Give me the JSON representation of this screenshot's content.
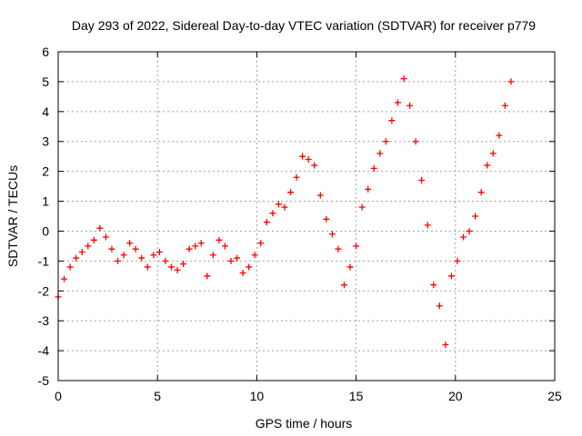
{
  "chart_data": {
    "type": "scatter",
    "title": "Day 293 of 2022, Sidereal Day-to-day VTEC variation (SDTVAR) for receiver p779",
    "xlabel": "GPS time / hours",
    "ylabel": "SDTVAR / TECUs",
    "xlim": [
      0,
      25
    ],
    "ylim": [
      -5,
      6
    ],
    "x_ticks": [
      0,
      5,
      10,
      15,
      20,
      25
    ],
    "y_ticks": [
      -5,
      -4,
      -3,
      -2,
      -1,
      0,
      1,
      2,
      3,
      4,
      5,
      6
    ],
    "grid": true,
    "marker": "+",
    "color": "#ff0000",
    "series": [
      {
        "name": "SDTVAR",
        "x": [
          0.0,
          0.3,
          0.6,
          0.9,
          1.2,
          1.5,
          1.8,
          2.1,
          2.4,
          2.7,
          3.0,
          3.3,
          3.6,
          3.9,
          4.2,
          4.5,
          4.8,
          5.1,
          5.4,
          5.7,
          6.0,
          6.3,
          6.6,
          6.9,
          7.2,
          7.5,
          7.8,
          8.1,
          8.4,
          8.7,
          9.0,
          9.3,
          9.6,
          9.9,
          10.2,
          10.5,
          10.8,
          11.1,
          11.4,
          11.7,
          12.0,
          12.3,
          12.6,
          12.9,
          13.2,
          13.5,
          13.8,
          14.1,
          14.4,
          14.7,
          15.0,
          15.3,
          15.6,
          15.9,
          16.2,
          16.5,
          16.8,
          17.1,
          17.4,
          17.7,
          18.0,
          18.3,
          18.6,
          18.9,
          19.2,
          19.5,
          19.8,
          20.1,
          20.4,
          20.7,
          21.0,
          21.3,
          21.6,
          21.9,
          22.2,
          22.5,
          22.8
        ],
        "y": [
          -2.2,
          -1.6,
          -1.2,
          -0.9,
          -0.7,
          -0.5,
          -0.3,
          0.1,
          -0.2,
          -0.6,
          -1.0,
          -0.8,
          -0.4,
          -0.6,
          -0.9,
          -1.2,
          -0.8,
          -0.7,
          -1.0,
          -1.2,
          -1.3,
          -1.1,
          -0.6,
          -0.5,
          -0.4,
          -1.5,
          -0.8,
          -0.3,
          -0.5,
          -1.0,
          -0.9,
          -1.4,
          -1.2,
          -0.8,
          -0.4,
          0.3,
          0.6,
          0.9,
          0.8,
          1.3,
          1.8,
          2.5,
          2.4,
          2.2,
          1.2,
          0.4,
          -0.1,
          -0.6,
          -1.8,
          -1.2,
          -0.5,
          0.8,
          1.4,
          2.1,
          2.6,
          3.0,
          3.7,
          4.3,
          5.1,
          4.2,
          3.0,
          1.7,
          0.2,
          -1.8,
          -2.5,
          -3.8,
          -1.5,
          -1.0,
          -0.2,
          0.0,
          0.5,
          1.3,
          2.2,
          2.6,
          3.2,
          4.2,
          5.0
        ]
      }
    ]
  }
}
